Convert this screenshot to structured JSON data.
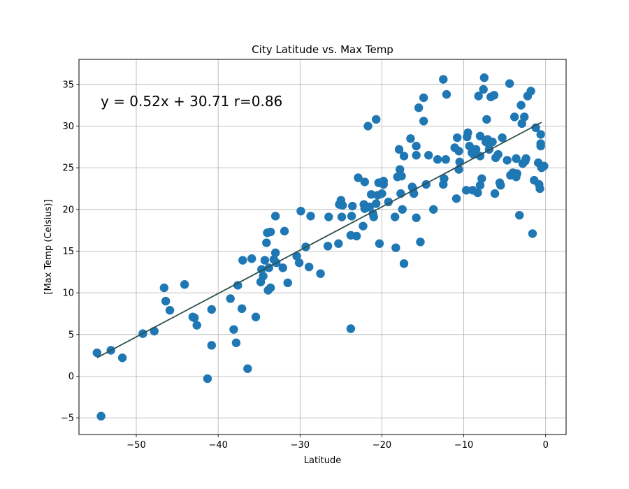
{
  "chart_data": {
    "type": "scatter",
    "title": "City Latitude vs. Max Temp",
    "xlabel": "Latitude",
    "ylabel": "[Max Temp (Celsius)]",
    "xlim": [
      -57,
      2.5
    ],
    "ylim": [
      -7,
      38
    ],
    "x_ticks": [
      -50,
      -40,
      -30,
      -20,
      -10,
      0
    ],
    "y_ticks": [
      -5,
      0,
      5,
      10,
      15,
      20,
      25,
      30,
      35
    ],
    "x_tick_labels": [
      "−50",
      "−40",
      "−30",
      "−20",
      "−10",
      "0"
    ],
    "y_tick_labels": [
      "−5",
      "0",
      "5",
      "10",
      "15",
      "20",
      "25",
      "30",
      "35"
    ],
    "grid": true,
    "annotation": "y = 0.52x + 30.71 r=0.86",
    "regression": {
      "slope": 0.52,
      "intercept": 30.71,
      "x_range": [
        -54.8,
        -0.5
      ]
    },
    "colors": {
      "points": "#1f77b4",
      "regression_line": "#2f4f4f"
    },
    "points": [
      [
        -54.8,
        2.8
      ],
      [
        -54.3,
        -4.8
      ],
      [
        -53.1,
        3.1
      ],
      [
        -51.7,
        2.2
      ],
      [
        -49.2,
        5.1
      ],
      [
        -47.8,
        5.4
      ],
      [
        -46.6,
        10.6
      ],
      [
        -46.4,
        9.0
      ],
      [
        -45.9,
        7.9
      ],
      [
        -44.1,
        11.0
      ],
      [
        -43.1,
        7.1
      ],
      [
        -42.9,
        7.0
      ],
      [
        -42.6,
        6.1
      ],
      [
        -41.3,
        -0.3
      ],
      [
        -40.8,
        3.7
      ],
      [
        -40.8,
        8.0
      ],
      [
        -38.5,
        9.3
      ],
      [
        -38.1,
        5.6
      ],
      [
        -37.8,
        4.0
      ],
      [
        -37.6,
        10.9
      ],
      [
        -37.1,
        8.1
      ],
      [
        -37.0,
        13.9
      ],
      [
        -36.4,
        0.9
      ],
      [
        -35.9,
        14.1
      ],
      [
        -35.4,
        7.1
      ],
      [
        -34.8,
        11.3
      ],
      [
        -34.7,
        12.8
      ],
      [
        -34.5,
        12.0
      ],
      [
        -34.3,
        13.9
      ],
      [
        -34.1,
        16.0
      ],
      [
        -34.0,
        17.2
      ],
      [
        -33.9,
        10.3
      ],
      [
        -33.8,
        13.0
      ],
      [
        -33.6,
        10.6
      ],
      [
        -33.6,
        17.3
      ],
      [
        -33.2,
        14.0
      ],
      [
        -33.0,
        19.2
      ],
      [
        -33.0,
        14.8
      ],
      [
        -32.9,
        13.6
      ],
      [
        -32.1,
        13.0
      ],
      [
        -31.9,
        17.4
      ],
      [
        -31.5,
        11.2
      ],
      [
        -30.4,
        14.4
      ],
      [
        -30.1,
        13.6
      ],
      [
        -29.9,
        19.8
      ],
      [
        -29.3,
        15.5
      ],
      [
        -28.9,
        13.1
      ],
      [
        -28.7,
        19.2
      ],
      [
        -27.5,
        12.3
      ],
      [
        -26.6,
        15.6
      ],
      [
        -26.5,
        19.1
      ],
      [
        -25.3,
        15.9
      ],
      [
        -25.2,
        20.6
      ],
      [
        -25.0,
        21.1
      ],
      [
        -24.9,
        19.1
      ],
      [
        -24.8,
        20.5
      ],
      [
        -23.8,
        5.7
      ],
      [
        -23.8,
        16.9
      ],
      [
        -23.7,
        19.2
      ],
      [
        -23.6,
        20.4
      ],
      [
        -23.1,
        16.8
      ],
      [
        -22.9,
        23.8
      ],
      [
        -22.3,
        18.0
      ],
      [
        -22.2,
        20.6
      ],
      [
        -22.1,
        20.1
      ],
      [
        -22.1,
        23.3
      ],
      [
        -21.7,
        30.0
      ],
      [
        -21.5,
        20.3
      ],
      [
        -21.3,
        21.8
      ],
      [
        -21.1,
        19.5
      ],
      [
        -21.0,
        19.1
      ],
      [
        -20.7,
        20.7
      ],
      [
        -20.7,
        30.8
      ],
      [
        -20.5,
        21.7
      ],
      [
        -20.4,
        23.2
      ],
      [
        -20.3,
        15.9
      ],
      [
        -20.0,
        21.9
      ],
      [
        -19.8,
        23.4
      ],
      [
        -19.8,
        23.0
      ],
      [
        -19.2,
        20.9
      ],
      [
        -18.4,
        19.1
      ],
      [
        -18.3,
        15.4
      ],
      [
        -18.1,
        23.9
      ],
      [
        -17.9,
        27.2
      ],
      [
        -17.8,
        24.8
      ],
      [
        -17.7,
        21.9
      ],
      [
        -17.6,
        24.0
      ],
      [
        -17.5,
        20.0
      ],
      [
        -17.3,
        13.5
      ],
      [
        -17.3,
        26.4
      ],
      [
        -16.5,
        28.5
      ],
      [
        -16.3,
        22.7
      ],
      [
        -16.2,
        22.5
      ],
      [
        -16.1,
        21.9
      ],
      [
        -15.8,
        26.5
      ],
      [
        -15.8,
        27.6
      ],
      [
        -15.8,
        19.0
      ],
      [
        -15.5,
        32.2
      ],
      [
        -15.3,
        16.1
      ],
      [
        -14.9,
        30.6
      ],
      [
        -14.9,
        33.4
      ],
      [
        -14.6,
        23.0
      ],
      [
        -14.3,
        26.5
      ],
      [
        -13.7,
        20.0
      ],
      [
        -13.2,
        26.0
      ],
      [
        -12.5,
        23.0
      ],
      [
        -12.4,
        23.7
      ],
      [
        -12.5,
        35.6
      ],
      [
        -12.2,
        26.0
      ],
      [
        -12.1,
        33.8
      ],
      [
        -11.1,
        27.4
      ],
      [
        -10.9,
        21.3
      ],
      [
        -10.8,
        28.6
      ],
      [
        -10.6,
        27.0
      ],
      [
        -10.6,
        24.8
      ],
      [
        -10.5,
        25.7
      ],
      [
        -9.7,
        22.3
      ],
      [
        -9.6,
        28.7
      ],
      [
        -9.5,
        29.2
      ],
      [
        -9.3,
        27.6
      ],
      [
        -9.0,
        26.8
      ],
      [
        -8.9,
        22.3
      ],
      [
        -8.8,
        26.6
      ],
      [
        -8.5,
        27.2
      ],
      [
        -8.3,
        22.0
      ],
      [
        -8.2,
        33.6
      ],
      [
        -8.0,
        22.9
      ],
      [
        -8.0,
        26.4
      ],
      [
        -8.0,
        28.8
      ],
      [
        -7.8,
        23.7
      ],
      [
        -7.6,
        34.4
      ],
      [
        -7.5,
        35.8
      ],
      [
        -7.3,
        28.1
      ],
      [
        -7.2,
        30.8
      ],
      [
        -7.1,
        28.4
      ],
      [
        -6.9,
        27.8
      ],
      [
        -6.9,
        27.2
      ],
      [
        -6.7,
        33.5
      ],
      [
        -6.5,
        28.1
      ],
      [
        -6.3,
        33.7
      ],
      [
        -6.2,
        21.9
      ],
      [
        -6.1,
        26.2
      ],
      [
        -5.8,
        26.6
      ],
      [
        -5.6,
        23.2
      ],
      [
        -5.5,
        22.9
      ],
      [
        -5.3,
        28.6
      ],
      [
        -4.7,
        25.9
      ],
      [
        -4.4,
        35.1
      ],
      [
        -4.3,
        24.1
      ],
      [
        -4.0,
        24.4
      ],
      [
        -3.8,
        31.1
      ],
      [
        -3.6,
        26.1
      ],
      [
        -3.6,
        23.9
      ],
      [
        -3.5,
        24.3
      ],
      [
        -3.2,
        19.3
      ],
      [
        -3.0,
        32.5
      ],
      [
        -2.9,
        30.3
      ],
      [
        -2.8,
        25.5
      ],
      [
        -2.6,
        31.1
      ],
      [
        -2.5,
        25.8
      ],
      [
        -2.4,
        26.1
      ],
      [
        -2.2,
        33.6
      ],
      [
        -1.8,
        34.2
      ],
      [
        -1.6,
        17.1
      ],
      [
        -1.4,
        23.5
      ],
      [
        -1.2,
        29.8
      ],
      [
        -0.9,
        25.6
      ],
      [
        -0.8,
        23.0
      ],
      [
        -0.7,
        22.5
      ],
      [
        -0.6,
        29.0
      ],
      [
        -0.6,
        27.9
      ],
      [
        -0.6,
        27.6
      ],
      [
        -0.5,
        25.0
      ],
      [
        -0.2,
        25.2
      ]
    ]
  }
}
